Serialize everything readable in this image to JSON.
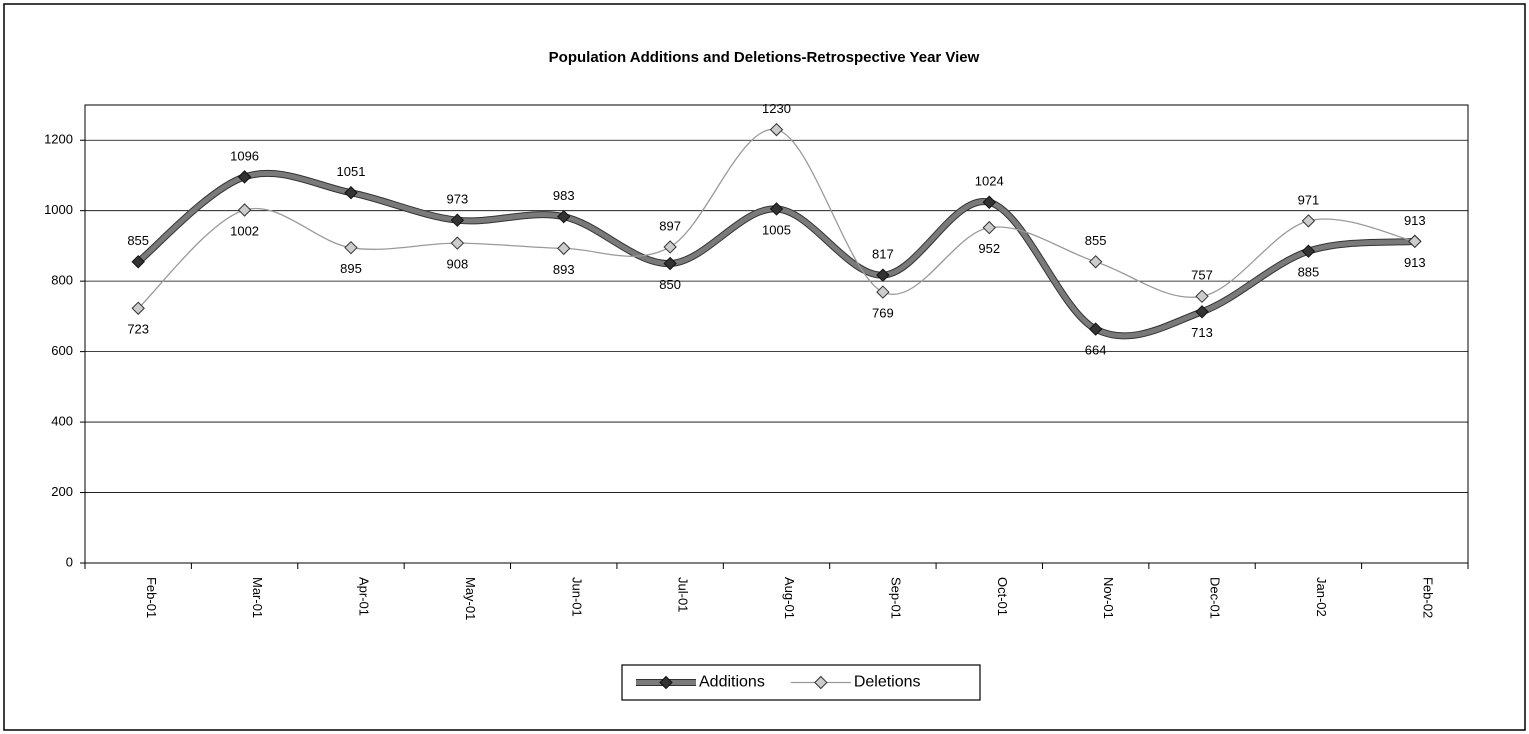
{
  "chart_data": {
    "type": "line",
    "title": "Population Additions and Deletions-Retrospective Year View",
    "categories": [
      "Feb-01",
      "Mar-01",
      "Apr-01",
      "May-01",
      "Jun-01",
      "Jul-01",
      "Aug-01",
      "Sep-01",
      "Oct-01",
      "Nov-01",
      "Dec-01",
      "Jan-02",
      "Feb-02"
    ],
    "series": [
      {
        "name": "Additions",
        "color": "#7a7a7a",
        "values": [
          855,
          1096,
          1051,
          973,
          983,
          850,
          1005,
          817,
          1024,
          664,
          713,
          885,
          913
        ]
      },
      {
        "name": "Deletions",
        "color": "#9a9a9a",
        "values": [
          723,
          1002,
          895,
          908,
          893,
          897,
          1230,
          769,
          952,
          855,
          757,
          971,
          913
        ]
      }
    ],
    "ylim": [
      0,
      1300
    ],
    "yticks": [
      0,
      200,
      400,
      600,
      800,
      1000,
      1200
    ],
    "grid": true,
    "legend": "bottom"
  }
}
